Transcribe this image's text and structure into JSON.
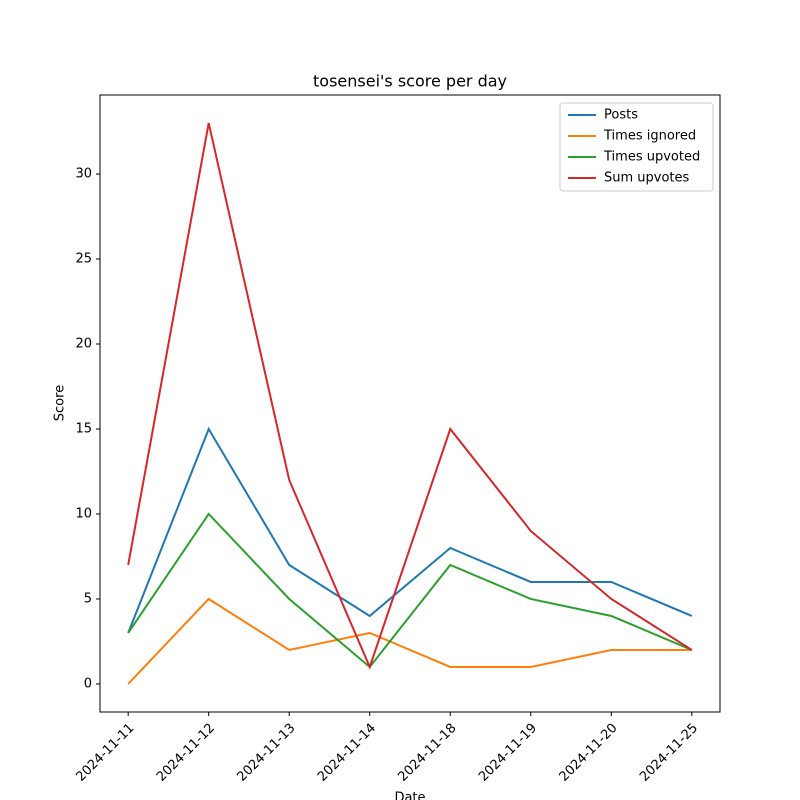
{
  "chart_data": {
    "type": "line",
    "title": "tosensei's score per day",
    "xlabel": "Date",
    "ylabel": "Score",
    "categories": [
      "2024-11-11",
      "2024-11-12",
      "2024-11-13",
      "2024-11-14",
      "2024-11-18",
      "2024-11-19",
      "2024-11-20",
      "2024-11-25"
    ],
    "series": [
      {
        "name": "Posts",
        "color": "#1f77b4",
        "values": [
          3,
          15,
          7,
          4,
          8,
          6,
          6,
          4
        ]
      },
      {
        "name": "Times ignored",
        "color": "#ff7f0e",
        "values": [
          0,
          5,
          2,
          3,
          1,
          1,
          2,
          2
        ]
      },
      {
        "name": "Times upvoted",
        "color": "#2ca02c",
        "values": [
          3,
          10,
          5,
          1,
          7,
          5,
          4,
          2
        ]
      },
      {
        "name": "Sum upvotes",
        "color": "#d62728",
        "values": [
          7,
          33,
          12,
          1,
          15,
          9,
          5,
          2
        ]
      }
    ],
    "ylim": [
      -1.65,
      34.65
    ],
    "yticks": [
      0,
      5,
      10,
      15,
      20,
      25,
      30
    ],
    "grid": false,
    "legend": "upper right"
  }
}
